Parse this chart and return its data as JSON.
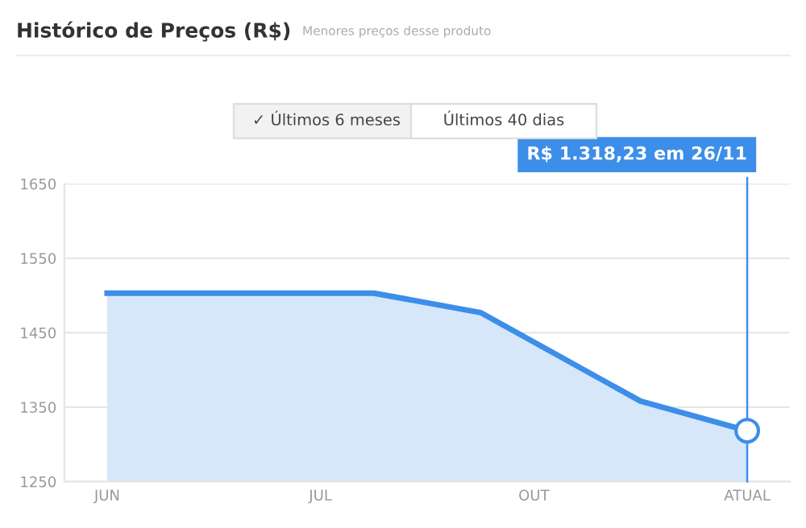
{
  "chart_data": {
    "type": "area",
    "title": "Histórico de Preços (R$)",
    "subtitle": "Menores preços desse produto",
    "categories": [
      "JUN",
      null,
      null,
      null,
      "JUL",
      null,
      null,
      null,
      "OUT",
      null,
      null,
      null,
      "ATUAL"
    ],
    "series": [
      {
        "color": "#3d8ee8",
        "values": [
          1503,
          null,
          null,
          null,
          null,
          1503,
          null,
          1477,
          null,
          null,
          1358,
          null,
          1318.23
        ]
      }
    ],
    "ylim": [
      1250,
      1650
    ],
    "yticks": [
      1250,
      1350,
      1450,
      1550,
      1650
    ],
    "grid": "y",
    "legend": false,
    "marker": "none",
    "line_style": "solid",
    "ref_lines": [
      {
        "axis": "x",
        "value": "ATUAL",
        "color": "#3d8ee8",
        "line_style": "solid"
      }
    ],
    "annotations": [
      "R$ 1.318,23 em 26/11",
      "✓ Últimos 6 meses",
      "Últimos 40 dias"
    ]
  }
}
